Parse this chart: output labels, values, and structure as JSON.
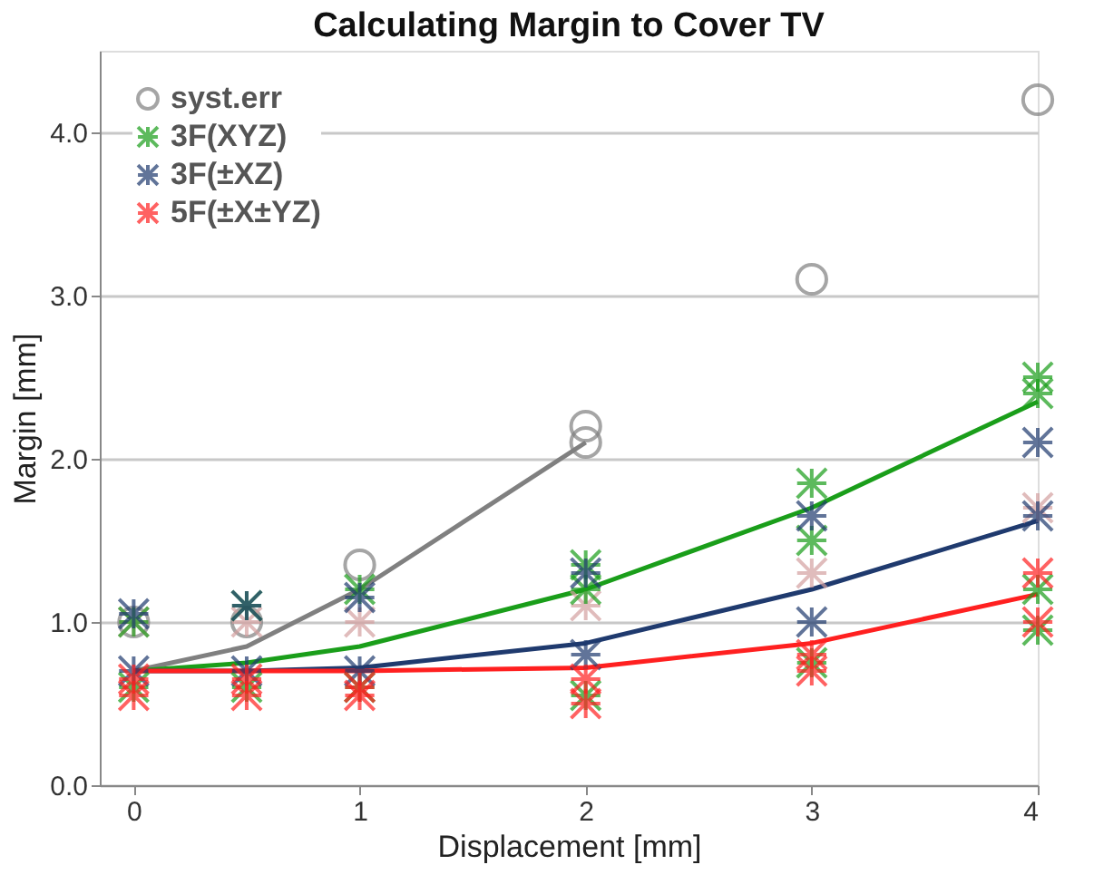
{
  "chart_data": {
    "type": "scatter",
    "title": "Calculating Margin to Cover TV",
    "xlabel": "Displacement  [mm]",
    "ylabel": "Margin [mm]",
    "xlim": [
      -0.15,
      4
    ],
    "xticks": [
      0,
      1,
      2,
      3,
      4
    ],
    "ylim": [
      0,
      4.5
    ],
    "yticks": [
      {
        "value": 0,
        "label": "0.0"
      },
      {
        "value": 1,
        "label": "1.0"
      },
      {
        "value": 2,
        "label": "2.0"
      },
      {
        "value": 3,
        "label": "3.0"
      },
      {
        "value": 4,
        "label": "4.0"
      }
    ],
    "grid": "y",
    "legend": "top left",
    "line_style": "solid",
    "series": [
      {
        "type": "line",
        "color": "#808080",
        "x": [
          0,
          0.5,
          1,
          2
        ],
        "values": [
          0.7,
          0.85,
          1.2,
          2.1
        ]
      },
      {
        "type": "line",
        "color": "#1a9e1a",
        "x": [
          0,
          0.5,
          1,
          2,
          3,
          4
        ],
        "values": [
          0.7,
          0.75,
          0.85,
          1.2,
          1.7,
          2.35
        ]
      },
      {
        "type": "line",
        "color": "#1f3a6e",
        "x": [
          0,
          0.5,
          1,
          2,
          3,
          4
        ],
        "values": [
          0.7,
          0.7,
          0.72,
          0.87,
          1.2,
          1.62
        ]
      },
      {
        "type": "line",
        "color": "#ff2020",
        "x": [
          0,
          0.5,
          1,
          2,
          3,
          4
        ],
        "values": [
          0.7,
          0.7,
          0.7,
          0.72,
          0.87,
          1.17
        ]
      },
      {
        "type": "scatter",
        "name": "syst.err",
        "color": "#808080",
        "marker": "circle",
        "x": [
          0,
          0.5,
          1,
          2,
          2,
          3,
          4
        ],
        "values": [
          1.0,
          1.0,
          1.35,
          2.1,
          2.2,
          3.1,
          4.2
        ]
      },
      {
        "type": "scatter",
        "color": "#d4a0a0",
        "marker": "cross",
        "x": [
          0,
          0.5,
          1,
          2,
          3,
          4
        ],
        "values": [
          1.0,
          1.0,
          1.0,
          1.1,
          1.3,
          1.7
        ]
      },
      {
        "type": "scatter",
        "name": "3F(XYZ)",
        "color": "#1a9e1a",
        "marker": "cross",
        "x": [
          0,
          0,
          0.5,
          0.5,
          1,
          1,
          2,
          2,
          2,
          3,
          3,
          3,
          4,
          4,
          4,
          4
        ],
        "values": [
          1.0,
          0.6,
          1.1,
          0.6,
          1.2,
          0.6,
          1.35,
          1.2,
          0.55,
          1.85,
          1.5,
          0.75,
          2.5,
          2.4,
          1.2,
          0.95
        ]
      },
      {
        "type": "scatter",
        "name": "3F(±XZ)",
        "color": "#1f3a6e",
        "marker": "cross",
        "x": [
          0,
          0,
          0.5,
          0.5,
          1,
          1,
          2,
          2,
          3,
          3,
          4,
          4
        ],
        "values": [
          1.05,
          0.7,
          1.1,
          0.7,
          1.15,
          0.7,
          1.3,
          0.8,
          1.65,
          1.0,
          2.1,
          1.65
        ]
      },
      {
        "type": "scatter",
        "name": "5F(±X±YZ)",
        "color": "#ff2020",
        "marker": "cross",
        "x": [
          0,
          0,
          0.5,
          0.5,
          1,
          1,
          2,
          2,
          3,
          3,
          4,
          4
        ],
        "values": [
          0.65,
          0.55,
          0.65,
          0.55,
          0.6,
          0.55,
          0.65,
          0.5,
          0.8,
          0.7,
          1.3,
          1.0
        ]
      }
    ]
  }
}
